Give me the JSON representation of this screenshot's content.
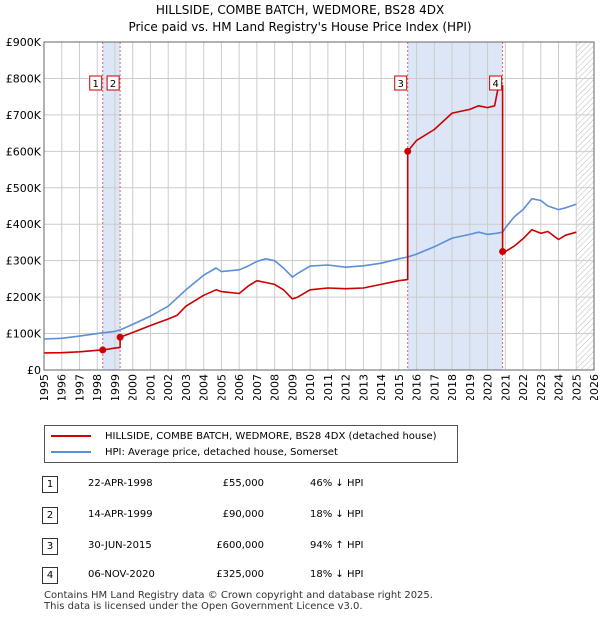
{
  "title_line1": "HILLSIDE, COMBE BATCH, WEDMORE, BS28 4DX",
  "title_line2": "Price paid vs. HM Land Registry's House Price Index (HPI)",
  "colors": {
    "property": "#cc0000",
    "hpi": "#5b8fd6",
    "shade": "#dde6f7",
    "vline": "#cc0000",
    "grid": "#cccccc"
  },
  "chart_data": {
    "type": "line",
    "title": "Price paid vs. HM Land Registry's House Price Index (HPI)",
    "xlabel": "",
    "ylabel": "",
    "xlim": [
      1995,
      2026
    ],
    "ylim": [
      0,
      900000
    ],
    "x_ticks": [
      "1995",
      "1996",
      "1997",
      "1998",
      "1999",
      "2000",
      "2001",
      "2002",
      "2003",
      "2004",
      "2005",
      "2006",
      "2007",
      "2008",
      "2009",
      "2010",
      "2011",
      "2012",
      "2013",
      "2014",
      "2015",
      "2016",
      "2017",
      "2018",
      "2019",
      "2020",
      "2021",
      "2022",
      "2023",
      "2024",
      "2025",
      "2026"
    ],
    "y_ticks": [
      {
        "value": 0,
        "label": "£0"
      },
      {
        "value": 100000,
        "label": "£100K"
      },
      {
        "value": 200000,
        "label": "£200K"
      },
      {
        "value": 300000,
        "label": "£300K"
      },
      {
        "value": 400000,
        "label": "£400K"
      },
      {
        "value": 500000,
        "label": "£500K"
      },
      {
        "value": 600000,
        "label": "£600K"
      },
      {
        "value": 700000,
        "label": "£700K"
      },
      {
        "value": 800000,
        "label": "£800K"
      },
      {
        "value": 900000,
        "label": "£900K"
      }
    ],
    "shaded_ranges": [
      [
        1998.31,
        1999.29
      ],
      [
        2015.5,
        2020.85
      ]
    ],
    "hatched_range": [
      2025.0,
      2026.0
    ],
    "series": [
      {
        "name": "HILLSIDE, COMBE BATCH, WEDMORE, BS28 4DX (detached house)",
        "x": [
          1995.0,
          1996.0,
          1997.0,
          1998.0,
          1998.31,
          1998.31,
          1999.0,
          1999.29,
          1999.29,
          2000.0,
          2001.0,
          2002.0,
          2002.5,
          2003.0,
          2004.0,
          2004.7,
          2005.0,
          2006.0,
          2006.5,
          2007.0,
          2007.5,
          2008.0,
          2008.5,
          2009.0,
          2009.3,
          2010.0,
          2011.0,
          2012.0,
          2013.0,
          2014.0,
          2015.0,
          2015.5,
          2015.5,
          2016.0,
          2017.0,
          2018.0,
          2019.0,
          2019.5,
          2020.0,
          2020.4,
          2020.6,
          2020.85,
          2020.85,
          2021.0,
          2021.5,
          2022.0,
          2022.5,
          2023.0,
          2023.4,
          2024.0,
          2024.4,
          2025.0
        ],
        "y": [
          47000,
          47500,
          50000,
          54000,
          55000,
          55000,
          60000,
          62000,
          90000,
          103000,
          122000,
          140000,
          150000,
          175000,
          205000,
          220000,
          215000,
          210000,
          230000,
          245000,
          240000,
          235000,
          220000,
          195000,
          200000,
          220000,
          225000,
          223000,
          225000,
          235000,
          245000,
          248000,
          600000,
          630000,
          660000,
          705000,
          715000,
          725000,
          720000,
          725000,
          775000,
          780000,
          325000,
          325000,
          340000,
          360000,
          385000,
          375000,
          380000,
          358000,
          370000,
          378000
        ]
      },
      {
        "name": "HPI: Average price, detached house, Somerset",
        "x": [
          1995.0,
          1996.0,
          1997.0,
          1998.0,
          1998.31,
          1999.0,
          1999.29,
          2000.0,
          2001.0,
          2002.0,
          2003.0,
          2004.0,
          2004.7,
          2005.0,
          2006.0,
          2006.5,
          2007.0,
          2007.5,
          2008.0,
          2008.5,
          2009.0,
          2009.3,
          2010.0,
          2011.0,
          2012.0,
          2013.0,
          2014.0,
          2015.0,
          2015.5,
          2016.0,
          2017.0,
          2018.0,
          2019.0,
          2019.5,
          2020.0,
          2020.5,
          2020.85,
          2021.0,
          2021.5,
          2022.0,
          2022.5,
          2023.0,
          2023.4,
          2024.0,
          2024.4,
          2025.0
        ],
        "y": [
          85000,
          87000,
          93000,
          100000,
          102000,
          106000,
          110000,
          125000,
          148000,
          175000,
          220000,
          260000,
          280000,
          270000,
          275000,
          285000,
          298000,
          305000,
          300000,
          280000,
          255000,
          265000,
          285000,
          288000,
          282000,
          286000,
          293000,
          305000,
          310000,
          318000,
          338000,
          362000,
          372000,
          378000,
          372000,
          375000,
          378000,
          390000,
          420000,
          440000,
          470000,
          465000,
          450000,
          440000,
          445000,
          455000
        ]
      }
    ],
    "sales": [
      {
        "label": "1",
        "x": 1998.31,
        "y": 55000
      },
      {
        "label": "2",
        "x": 1999.29,
        "y": 90000
      },
      {
        "label": "3",
        "x": 2015.5,
        "y": 600000
      },
      {
        "label": "4",
        "x": 2020.85,
        "y": 325000
      }
    ]
  },
  "legend": {
    "property": "HILLSIDE, COMBE BATCH, WEDMORE, BS28 4DX (detached house)",
    "hpi": "HPI: Average price, detached house, Somerset"
  },
  "transactions": [
    {
      "num": "1",
      "date": "22-APR-1998",
      "price": "£55,000",
      "hpi": "46% ↓ HPI"
    },
    {
      "num": "2",
      "date": "14-APR-1999",
      "price": "£90,000",
      "hpi": "18% ↓ HPI"
    },
    {
      "num": "3",
      "date": "30-JUN-2015",
      "price": "£600,000",
      "hpi": "94% ↑ HPI"
    },
    {
      "num": "4",
      "date": "06-NOV-2020",
      "price": "£325,000",
      "hpi": "18% ↓ HPI"
    }
  ],
  "footer": {
    "line1": "Contains HM Land Registry data © Crown copyright and database right 2025.",
    "line2": "This data is licensed under the Open Government Licence v3.0."
  }
}
